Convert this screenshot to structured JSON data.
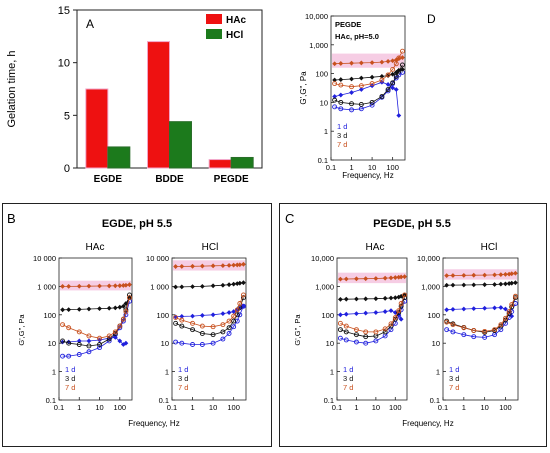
{
  "colors": {
    "hac": "#ee1111",
    "hcl": "#1c7a1c",
    "d1": "#2020dd",
    "d3": "#111111",
    "d7": "#c8501e",
    "band": "#f2b8d8",
    "axis": "#222222"
  },
  "panel_a": {
    "letter": "A",
    "ylabel": "Gelation time, h",
    "yticks": [
      "0",
      "5",
      "10",
      "15"
    ],
    "legend": [
      "HAc",
      "HCl"
    ]
  },
  "panel_d": {
    "letter": "D",
    "title": "PEGDE",
    "subtitle": "HAc, pH=5.0"
  },
  "panel_b": {
    "letter": "B",
    "title": "EGDE, pH 5.5",
    "left_label": "HAc",
    "right_label": "HCl"
  },
  "panel_c": {
    "letter": "C",
    "title": "PEGDE, pH 5.5",
    "left_label": "HAc",
    "right_label": "HCl"
  },
  "rheo_axis": {
    "ylabel": "G',G\", Pa",
    "xlabel": "Frequency, Hz",
    "yticks_comma": [
      "0.1",
      "1",
      "10",
      "100",
      "1,000",
      "10,000"
    ],
    "yticks_space": [
      "0.1",
      "1",
      "10",
      "100",
      "1 000",
      "10 000"
    ],
    "xticks": [
      "0.1",
      "1",
      "10",
      "100"
    ],
    "day_labels": [
      "1 d",
      "3 d",
      "7 d"
    ]
  },
  "chart_data": [
    {
      "id": "A",
      "type": "bar",
      "categories": [
        "EGDE",
        "BDDE",
        "PEGDE"
      ],
      "series": [
        {
          "name": "HAc",
          "values": [
            7.5,
            12.0,
            0.8
          ]
        },
        {
          "name": "HCl",
          "values": [
            2.0,
            4.4,
            1.0
          ]
        }
      ],
      "ylabel": "Gelation time, h",
      "ylim": [
        0,
        15
      ]
    },
    {
      "id": "D",
      "type": "scatter",
      "title": "PEGDE",
      "subtitle": "HAc, pH=5.0",
      "xlabel": "Frequency, Hz",
      "ylabel": "G',G\", Pa",
      "xscale": "log",
      "yscale": "log",
      "xlim": [
        0.1,
        400
      ],
      "ylim": [
        0.1,
        10000
      ],
      "series": [
        {
          "name": "1 d",
          "modulus": "G'",
          "x": [
            0.15,
            0.3,
            1,
            3,
            10,
            30,
            60,
            100,
            150,
            200
          ],
          "y": [
            16,
            18,
            22,
            28,
            38,
            50,
            42,
            32,
            28,
            3.5
          ]
        },
        {
          "name": "1 d",
          "modulus": "G\"",
          "x": [
            0.15,
            0.3,
            1,
            3,
            10,
            30,
            60,
            100,
            150,
            200,
            300
          ],
          "y": [
            7,
            6,
            5.5,
            6,
            8,
            15,
            25,
            45,
            70,
            90,
            110
          ]
        },
        {
          "name": "3 d",
          "modulus": "G'",
          "x": [
            0.15,
            0.3,
            1,
            3,
            10,
            30,
            60,
            100,
            150,
            200,
            300
          ],
          "y": [
            60,
            62,
            65,
            70,
            75,
            80,
            85,
            95,
            110,
            130,
            140
          ]
        },
        {
          "name": "3 d",
          "modulus": "G\"",
          "x": [
            0.15,
            0.3,
            1,
            3,
            10,
            30,
            60,
            100,
            150,
            200,
            300
          ],
          "y": [
            12,
            10,
            9,
            8.5,
            10,
            16,
            28,
            48,
            80,
            120,
            200
          ]
        },
        {
          "name": "7 d",
          "modulus": "G'",
          "x": [
            0.15,
            0.3,
            1,
            3,
            10,
            30,
            60,
            100,
            150,
            200,
            300
          ],
          "y": [
            220,
            225,
            230,
            235,
            240,
            250,
            265,
            280,
            300,
            330,
            360
          ]
        },
        {
          "name": "7 d",
          "modulus": "G\"",
          "x": [
            0.15,
            0.3,
            1,
            3,
            10,
            30,
            60,
            100,
            150,
            200,
            300
          ],
          "y": [
            45,
            40,
            35,
            38,
            45,
            60,
            90,
            140,
            220,
            350,
            600
          ]
        }
      ]
    },
    {
      "id": "B-HAc",
      "type": "scatter",
      "title": "EGDE, pH 5.5",
      "subtitle": "HAc",
      "xlabel": "Frequency, Hz",
      "ylabel": "G',G\", Pa",
      "xscale": "log",
      "yscale": "log",
      "xlim": [
        0.1,
        400
      ],
      "ylim": [
        0.1,
        10000
      ],
      "series": [
        {
          "name": "1 d",
          "modulus": "G'",
          "x": [
            0.15,
            0.3,
            1,
            3,
            10,
            30,
            60,
            100,
            150,
            200
          ],
          "y": [
            11,
            11,
            12,
            12,
            13,
            15,
            16,
            12,
            9,
            10
          ]
        },
        {
          "name": "1 d",
          "modulus": "G\"",
          "x": [
            0.15,
            0.3,
            1,
            3,
            10,
            30,
            60,
            100,
            150,
            200,
            300
          ],
          "y": [
            3.5,
            3.5,
            4,
            5,
            7,
            12,
            20,
            35,
            60,
            100,
            300
          ]
        },
        {
          "name": "3 d",
          "modulus": "G'",
          "x": [
            0.15,
            0.3,
            1,
            3,
            10,
            30,
            60,
            100,
            150,
            200,
            300
          ],
          "y": [
            150,
            152,
            155,
            160,
            165,
            170,
            175,
            185,
            200,
            250,
            400
          ]
        },
        {
          "name": "3 d",
          "modulus": "G\"",
          "x": [
            0.15,
            0.3,
            1,
            3,
            10,
            30,
            60,
            100,
            150,
            200,
            300
          ],
          "y": [
            12,
            10,
            9,
            8,
            9,
            14,
            22,
            40,
            70,
            150,
            500
          ]
        },
        {
          "name": "7 d",
          "modulus": "G'",
          "x": [
            0.15,
            0.3,
            1,
            3,
            10,
            30,
            60,
            100,
            150,
            200,
            300
          ],
          "y": [
            1000,
            1000,
            1010,
            1020,
            1030,
            1040,
            1050,
            1060,
            1080,
            1100,
            1150
          ]
        },
        {
          "name": "7 d",
          "modulus": "G\"",
          "x": [
            0.15,
            0.3,
            1,
            3,
            10,
            30,
            60,
            100,
            150,
            200,
            300
          ],
          "y": [
            45,
            35,
            25,
            18,
            15,
            18,
            25,
            40,
            70,
            130,
            400
          ]
        }
      ]
    },
    {
      "id": "B-HCl",
      "type": "scatter",
      "title": "EGDE, pH 5.5",
      "subtitle": "HCl",
      "xlabel": "Frequency, Hz",
      "ylabel": "G',G\", Pa",
      "xscale": "log",
      "yscale": "log",
      "xlim": [
        0.1,
        400
      ],
      "ylim": [
        0.1,
        10000
      ],
      "series": [
        {
          "name": "1 d",
          "modulus": "G'",
          "x": [
            0.15,
            0.3,
            1,
            3,
            10,
            30,
            60,
            100,
            150,
            200,
            300
          ],
          "y": [
            85,
            88,
            90,
            95,
            100,
            110,
            120,
            130,
            150,
            170,
            200
          ]
        },
        {
          "name": "1 d",
          "modulus": "G\"",
          "x": [
            0.15,
            0.3,
            1,
            3,
            10,
            30,
            60,
            100,
            150,
            200,
            300
          ],
          "y": [
            11,
            10,
            9,
            9,
            10,
            14,
            22,
            38,
            60,
            100,
            200
          ]
        },
        {
          "name": "3 d",
          "modulus": "G'",
          "x": [
            0.15,
            0.3,
            1,
            3,
            10,
            30,
            60,
            100,
            150,
            200,
            300
          ],
          "y": [
            950,
            960,
            980,
            1000,
            1050,
            1100,
            1150,
            1200,
            1250,
            1300,
            1350
          ]
        },
        {
          "name": "3 d",
          "modulus": "G\"",
          "x": [
            0.15,
            0.3,
            1,
            3,
            10,
            30,
            60,
            100,
            150,
            200,
            300
          ],
          "y": [
            50,
            40,
            30,
            22,
            20,
            25,
            35,
            60,
            100,
            180,
            400
          ]
        },
        {
          "name": "7 d",
          "modulus": "G'",
          "x": [
            0.15,
            0.3,
            1,
            3,
            10,
            30,
            60,
            100,
            150,
            200,
            300
          ],
          "y": [
            5000,
            5050,
            5100,
            5200,
            5300,
            5400,
            5500,
            5600,
            5700,
            5800,
            6000
          ]
        },
        {
          "name": "7 d",
          "modulus": "G\"",
          "x": [
            0.15,
            0.3,
            1,
            3,
            10,
            30,
            60,
            100,
            150,
            200,
            300
          ],
          "y": [
            80,
            65,
            50,
            40,
            38,
            45,
            60,
            90,
            150,
            250,
            500
          ]
        }
      ]
    },
    {
      "id": "C-HAc",
      "type": "scatter",
      "title": "PEGDE, pH 5.5",
      "subtitle": "HAc",
      "xlabel": "Frequency, Hz",
      "ylabel": "G',G\", Pa",
      "xscale": "log",
      "yscale": "log",
      "xlim": [
        0.1,
        400
      ],
      "ylim": [
        0.1,
        10000
      ],
      "series": [
        {
          "name": "1 d",
          "modulus": "G'",
          "x": [
            0.15,
            0.3,
            1,
            3,
            10,
            30,
            60,
            100,
            150,
            200
          ],
          "y": [
            100,
            105,
            110,
            115,
            120,
            130,
            140,
            120,
            100,
            70
          ]
        },
        {
          "name": "1 d",
          "modulus": "G\"",
          "x": [
            0.15,
            0.3,
            1,
            3,
            10,
            30,
            60,
            100,
            150,
            200,
            300
          ],
          "y": [
            15,
            13,
            11,
            10,
            12,
            18,
            30,
            50,
            90,
            150,
            300
          ]
        },
        {
          "name": "3 d",
          "modulus": "G'",
          "x": [
            0.15,
            0.3,
            1,
            3,
            10,
            30,
            60,
            100,
            150,
            200,
            300
          ],
          "y": [
            350,
            355,
            360,
            365,
            370,
            380,
            390,
            400,
            420,
            450,
            500
          ]
        },
        {
          "name": "3 d",
          "modulus": "G\"",
          "x": [
            0.15,
            0.3,
            1,
            3,
            10,
            30,
            60,
            100,
            150,
            200,
            300
          ],
          "y": [
            30,
            25,
            20,
            17,
            18,
            25,
            40,
            70,
            120,
            200,
            400
          ]
        },
        {
          "name": "7 d",
          "modulus": "G'",
          "x": [
            0.15,
            0.3,
            1,
            3,
            10,
            30,
            60,
            100,
            150,
            200,
            300
          ],
          "y": [
            1800,
            1820,
            1850,
            1870,
            1900,
            1950,
            2000,
            2050,
            2100,
            2150,
            2200
          ]
        },
        {
          "name": "7 d",
          "modulus": "G\"",
          "x": [
            0.15,
            0.3,
            1,
            3,
            10,
            30,
            60,
            100,
            150,
            200,
            300
          ],
          "y": [
            50,
            40,
            30,
            25,
            25,
            32,
            48,
            80,
            140,
            250,
            500
          ]
        }
      ]
    },
    {
      "id": "C-HCl",
      "type": "scatter",
      "title": "PEGDE, pH 5.5",
      "subtitle": "HCl",
      "xlabel": "Frequency, Hz",
      "ylabel": "G',G\", Pa",
      "xscale": "log",
      "yscale": "log",
      "xlim": [
        0.1,
        400
      ],
      "ylim": [
        0.1,
        10000
      ],
      "series": [
        {
          "name": "1 d",
          "modulus": "G'",
          "x": [
            0.15,
            0.3,
            1,
            3,
            10,
            30,
            60,
            100,
            150,
            200
          ],
          "y": [
            150,
            155,
            160,
            165,
            170,
            175,
            180,
            160,
            120,
            90
          ]
        },
        {
          "name": "1 d",
          "modulus": "G\"",
          "x": [
            0.15,
            0.3,
            1,
            3,
            10,
            30,
            60,
            100,
            150,
            200,
            300
          ],
          "y": [
            30,
            25,
            20,
            17,
            16,
            20,
            30,
            50,
            80,
            130,
            250
          ]
        },
        {
          "name": "3 d",
          "modulus": "G'",
          "x": [
            0.15,
            0.3,
            1,
            3,
            10,
            30,
            60,
            100,
            150,
            200,
            300
          ],
          "y": [
            1100,
            1110,
            1120,
            1130,
            1150,
            1170,
            1200,
            1230,
            1260,
            1300,
            1350
          ]
        },
        {
          "name": "3 d",
          "modulus": "G\"",
          "x": [
            0.15,
            0.3,
            1,
            3,
            10,
            30,
            60,
            100,
            150,
            200,
            300
          ],
          "y": [
            60,
            48,
            36,
            28,
            24,
            28,
            40,
            65,
            110,
            190,
            400
          ]
        },
        {
          "name": "7 d",
          "modulus": "G'",
          "x": [
            0.15,
            0.3,
            1,
            3,
            10,
            30,
            60,
            100,
            150,
            200,
            300
          ],
          "y": [
            2400,
            2420,
            2450,
            2480,
            2500,
            2550,
            2600,
            2650,
            2700,
            2800,
            2900
          ]
        },
        {
          "name": "7 d",
          "modulus": "G\"",
          "x": [
            0.15,
            0.3,
            1,
            3,
            10,
            30,
            60,
            100,
            150,
            200,
            300
          ],
          "y": [
            55,
            45,
            35,
            28,
            26,
            30,
            45,
            75,
            130,
            230,
            450
          ]
        }
      ]
    }
  ]
}
